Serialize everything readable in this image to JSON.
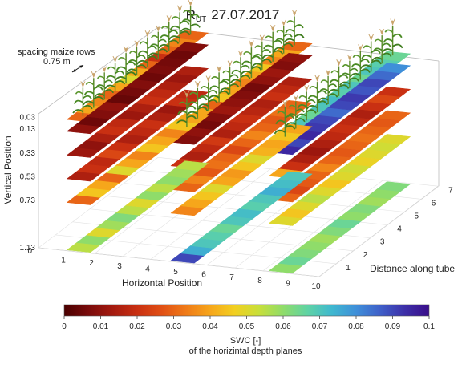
{
  "chart_data": {
    "type": "heatmap",
    "title_main": "R",
    "title_sub": "UT",
    "title_date": "27.07.2017",
    "annotation": {
      "line1": "spacing maize rows",
      "line2": "0.75 m"
    },
    "zlabel": "Vertical Position",
    "xlabel": "Horizontal Position",
    "ylabel": "Distance along tube",
    "z_ticks": [
      "0.03",
      "0.13",
      "0.33",
      "0.53",
      "0.73",
      "1.13"
    ],
    "z_zero": "0",
    "x_ticks": [
      "1",
      "2",
      "3",
      "4",
      "5",
      "6",
      "7",
      "8",
      "9",
      "10"
    ],
    "y_ticks": [
      "1",
      "2",
      "3",
      "4",
      "5",
      "6",
      "7"
    ],
    "colorbar": {
      "ticks": [
        "0",
        "0.01",
        "0.02",
        "0.03",
        "0.04",
        "0.05",
        "0.06",
        "0.07",
        "0.08",
        "0.09",
        "0.1"
      ],
      "label1": "SWC [-]",
      "label2": "of the horizintal depth planes",
      "colors": [
        "#4a0000",
        "#7a0b0b",
        "#a41a0f",
        "#c93012",
        "#e04f14",
        "#ef7a18",
        "#f6a61b",
        "#f2cf20",
        "#c8df3a",
        "#8fdc6a",
        "#5fd3a4",
        "#3fb8cf",
        "#3f8fd9",
        "#3f5fc8",
        "#3d2fa8",
        "#3a0e8a"
      ]
    },
    "planes": [
      {
        "tube": 1,
        "depth": 0.03,
        "swc": [
          0.03,
          0.04,
          0.035,
          0.03,
          0.04,
          0.05,
          0.04,
          0.03,
          0.02,
          0.03,
          0.035,
          0.03
        ]
      },
      {
        "tube": 1,
        "depth": 0.13,
        "swc": [
          0.01,
          0.005,
          0.008,
          0.01,
          0.004,
          0.006,
          0.008,
          0.005,
          0.007,
          0.006,
          0.005,
          0.008
        ]
      },
      {
        "tube": 1,
        "depth": 0.33,
        "swc": [
          0.012,
          0.01,
          0.015,
          0.02,
          0.018,
          0.012,
          0.015,
          0.02,
          0.018,
          0.015,
          0.012,
          0.015
        ]
      },
      {
        "tube": 1,
        "depth": 0.53,
        "swc": [
          0.015,
          0.02,
          0.018,
          0.025,
          0.02,
          0.015,
          0.018,
          0.02,
          0.015,
          0.012,
          0.02,
          0.018
        ]
      },
      {
        "tube": 1,
        "depth": 0.73,
        "swc": [
          0.03,
          0.045,
          0.04,
          0.03,
          0.05,
          0.04,
          0.035,
          0.045,
          0.04,
          0.035,
          0.045,
          0.04
        ]
      },
      {
        "tube": 1,
        "depth": 1.13,
        "swc": [
          0.055,
          0.06,
          0.05,
          0.058,
          0.062,
          0.055,
          0.05,
          0.06,
          0.055,
          0.06,
          0.058,
          0.055
        ]
      },
      {
        "tube": 2,
        "depth": 0.03,
        "swc": [
          0.035,
          0.045,
          0.04,
          0.03,
          0.045,
          0.04,
          0.035,
          0.04,
          0.045,
          0.035,
          0.04,
          0.03
        ]
      },
      {
        "tube": 2,
        "depth": 0.13,
        "swc": [
          0.008,
          0.01,
          0.006,
          0.008,
          0.012,
          0.01,
          0.008,
          0.006,
          0.01,
          0.012,
          0.008,
          0.01
        ]
      },
      {
        "tube": 2,
        "depth": 0.33,
        "swc": [
          0.02,
          0.015,
          0.018,
          0.022,
          0.015,
          0.018,
          0.02,
          0.017,
          0.015,
          0.02,
          0.018,
          0.015
        ]
      },
      {
        "tube": 2,
        "depth": 0.53,
        "swc": [
          0.03,
          0.035,
          0.028,
          0.032,
          0.03,
          0.025,
          0.03,
          0.035,
          0.03,
          0.028,
          0.032,
          0.03
        ]
      },
      {
        "tube": 2,
        "depth": 0.73,
        "swc": [
          0.035,
          0.04,
          0.045,
          0.05,
          0.04,
          0.038,
          0.045,
          0.05,
          0.042,
          0.04,
          0.045,
          0.04
        ]
      },
      {
        "tube": 2,
        "depth": 1.13,
        "swc": [
          0.09,
          0.075,
          0.07,
          0.068,
          0.065,
          0.07,
          0.072,
          0.068,
          0.07,
          0.075,
          0.072,
          0.07
        ]
      },
      {
        "tube": 3,
        "depth": 0.03,
        "swc": [
          0.06,
          0.065,
          0.07,
          0.065,
          0.07,
          0.072,
          0.068,
          0.07,
          0.065,
          0.07,
          0.068,
          0.065
        ]
      },
      {
        "tube": 3,
        "depth": 0.13,
        "swc": [
          0.095,
          0.09,
          0.095,
          0.092,
          0.09,
          0.085,
          0.09,
          0.092,
          0.088,
          0.09,
          0.085,
          0.08
        ]
      },
      {
        "tube": 3,
        "depth": 0.33,
        "swc": [
          0.04,
          0.02,
          0.015,
          0.012,
          0.015,
          0.018,
          0.02,
          0.018,
          0.015,
          0.02,
          0.025,
          0.02
        ]
      },
      {
        "tube": 3,
        "depth": 0.53,
        "swc": [
          0.03,
          0.025,
          0.028,
          0.03,
          0.035,
          0.03,
          0.028,
          0.03,
          0.032,
          0.03,
          0.028,
          0.03
        ]
      },
      {
        "tube": 3,
        "depth": 0.73,
        "swc": [
          0.05,
          0.045,
          0.05,
          0.055,
          0.05,
          0.045,
          0.05,
          0.052,
          0.048,
          0.05,
          0.052,
          0.05
        ]
      },
      {
        "tube": 3,
        "depth": 1.13,
        "swc": [
          0.06,
          0.065,
          0.062,
          0.06,
          0.058,
          0.062,
          0.065,
          0.06,
          0.062,
          0.058,
          0.06,
          0.062
        ]
      }
    ]
  }
}
